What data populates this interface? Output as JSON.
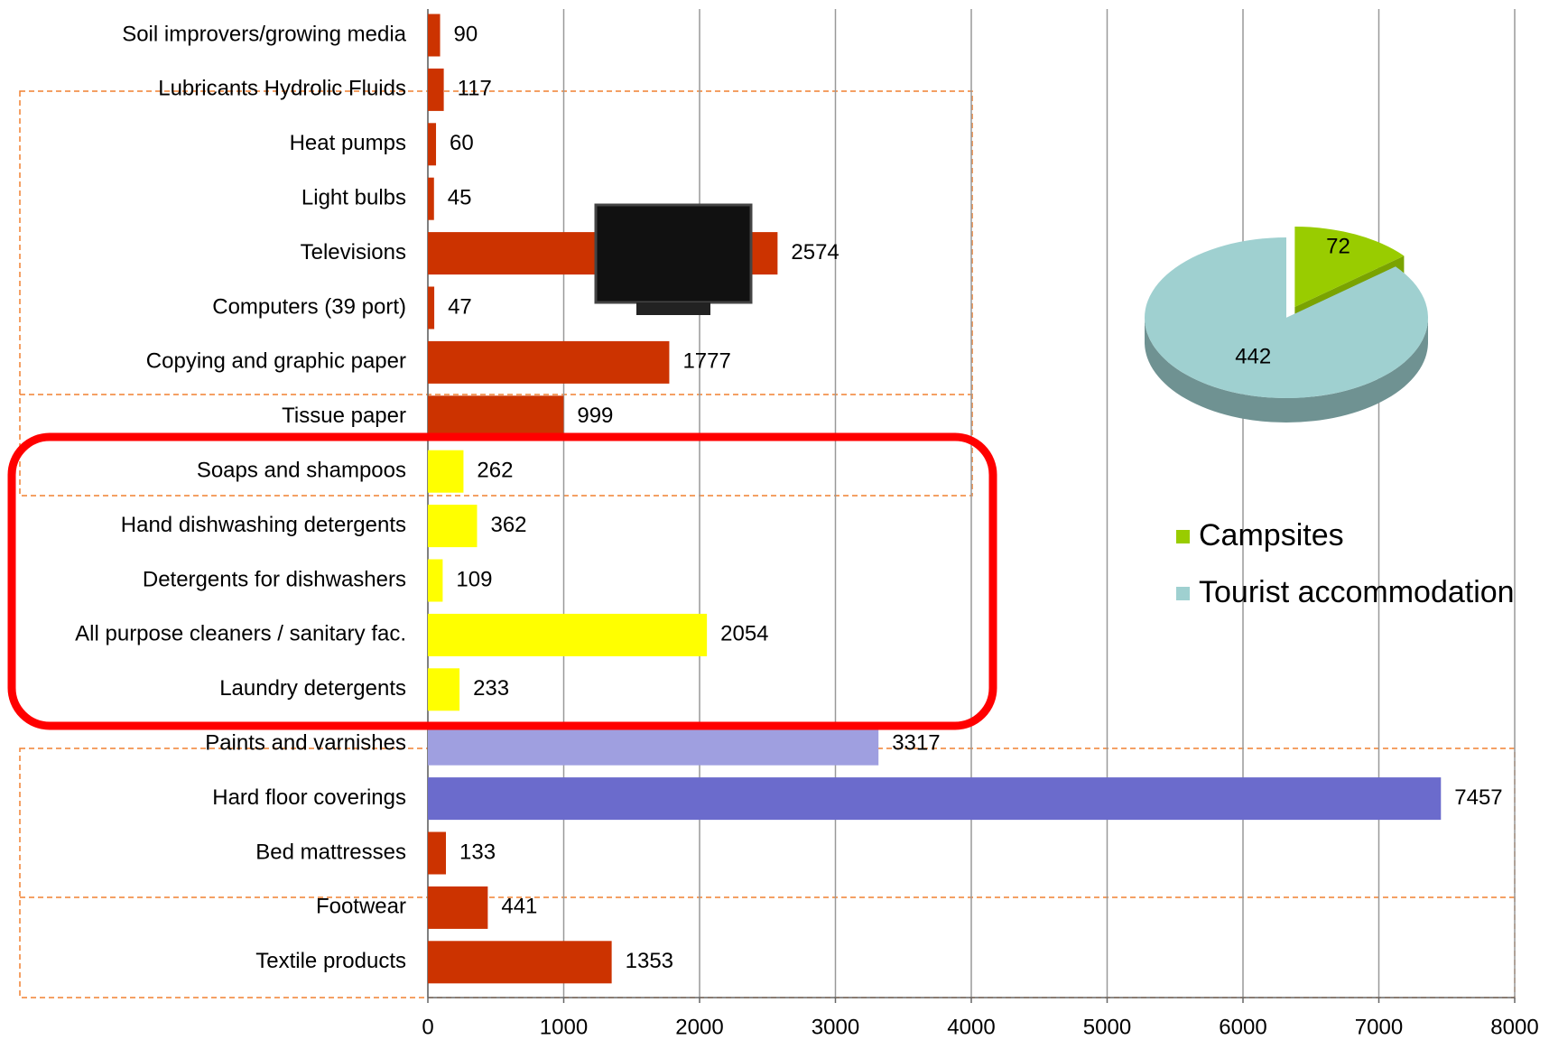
{
  "chart_data": [
    {
      "type": "bar",
      "categories": [
        "Soil improvers/growing media",
        "Lubricants Hydrolic Fluids",
        "Heat pumps",
        "Light bulbs",
        "Televisions",
        "Computers (39 port)",
        "Copying and graphic paper",
        "Tissue paper",
        "Soaps and shampoos",
        "Hand dishwashing detergents",
        "Detergents for dishwashers",
        "All purpose cleaners / sanitary fac.",
        "Laundry detergents",
        "Paints and varnishes",
        "Hard floor coverings",
        "Bed mattresses",
        "Footwear",
        "Textile products"
      ],
      "values": [
        90,
        117,
        60,
        45,
        2574,
        47,
        1777,
        999,
        262,
        362,
        109,
        2054,
        233,
        3317,
        7457,
        133,
        441,
        1353
      ],
      "colors": [
        "#cc3300",
        "#cc3300",
        "#cc3300",
        "#cc3300",
        "#cc3300",
        "#cc3300",
        "#cc3300",
        "#cc3300",
        "#ffff00",
        "#ffff00",
        "#ffff00",
        "#ffff00",
        "#ffff00",
        "#9f9fe0",
        "#6b6bcc",
        "#cc3300",
        "#cc3300",
        "#cc3300"
      ],
      "xlim": [
        0,
        8000
      ],
      "xticks": [
        0,
        1000,
        2000,
        3000,
        4000,
        5000,
        6000,
        7000,
        8000
      ],
      "grid": true
    },
    {
      "type": "pie",
      "categories": [
        "Campsites",
        "Tourist accommodation"
      ],
      "values": [
        72,
        442
      ],
      "colors": [
        "#99cc00",
        "#9fd0d0"
      ]
    }
  ]
}
